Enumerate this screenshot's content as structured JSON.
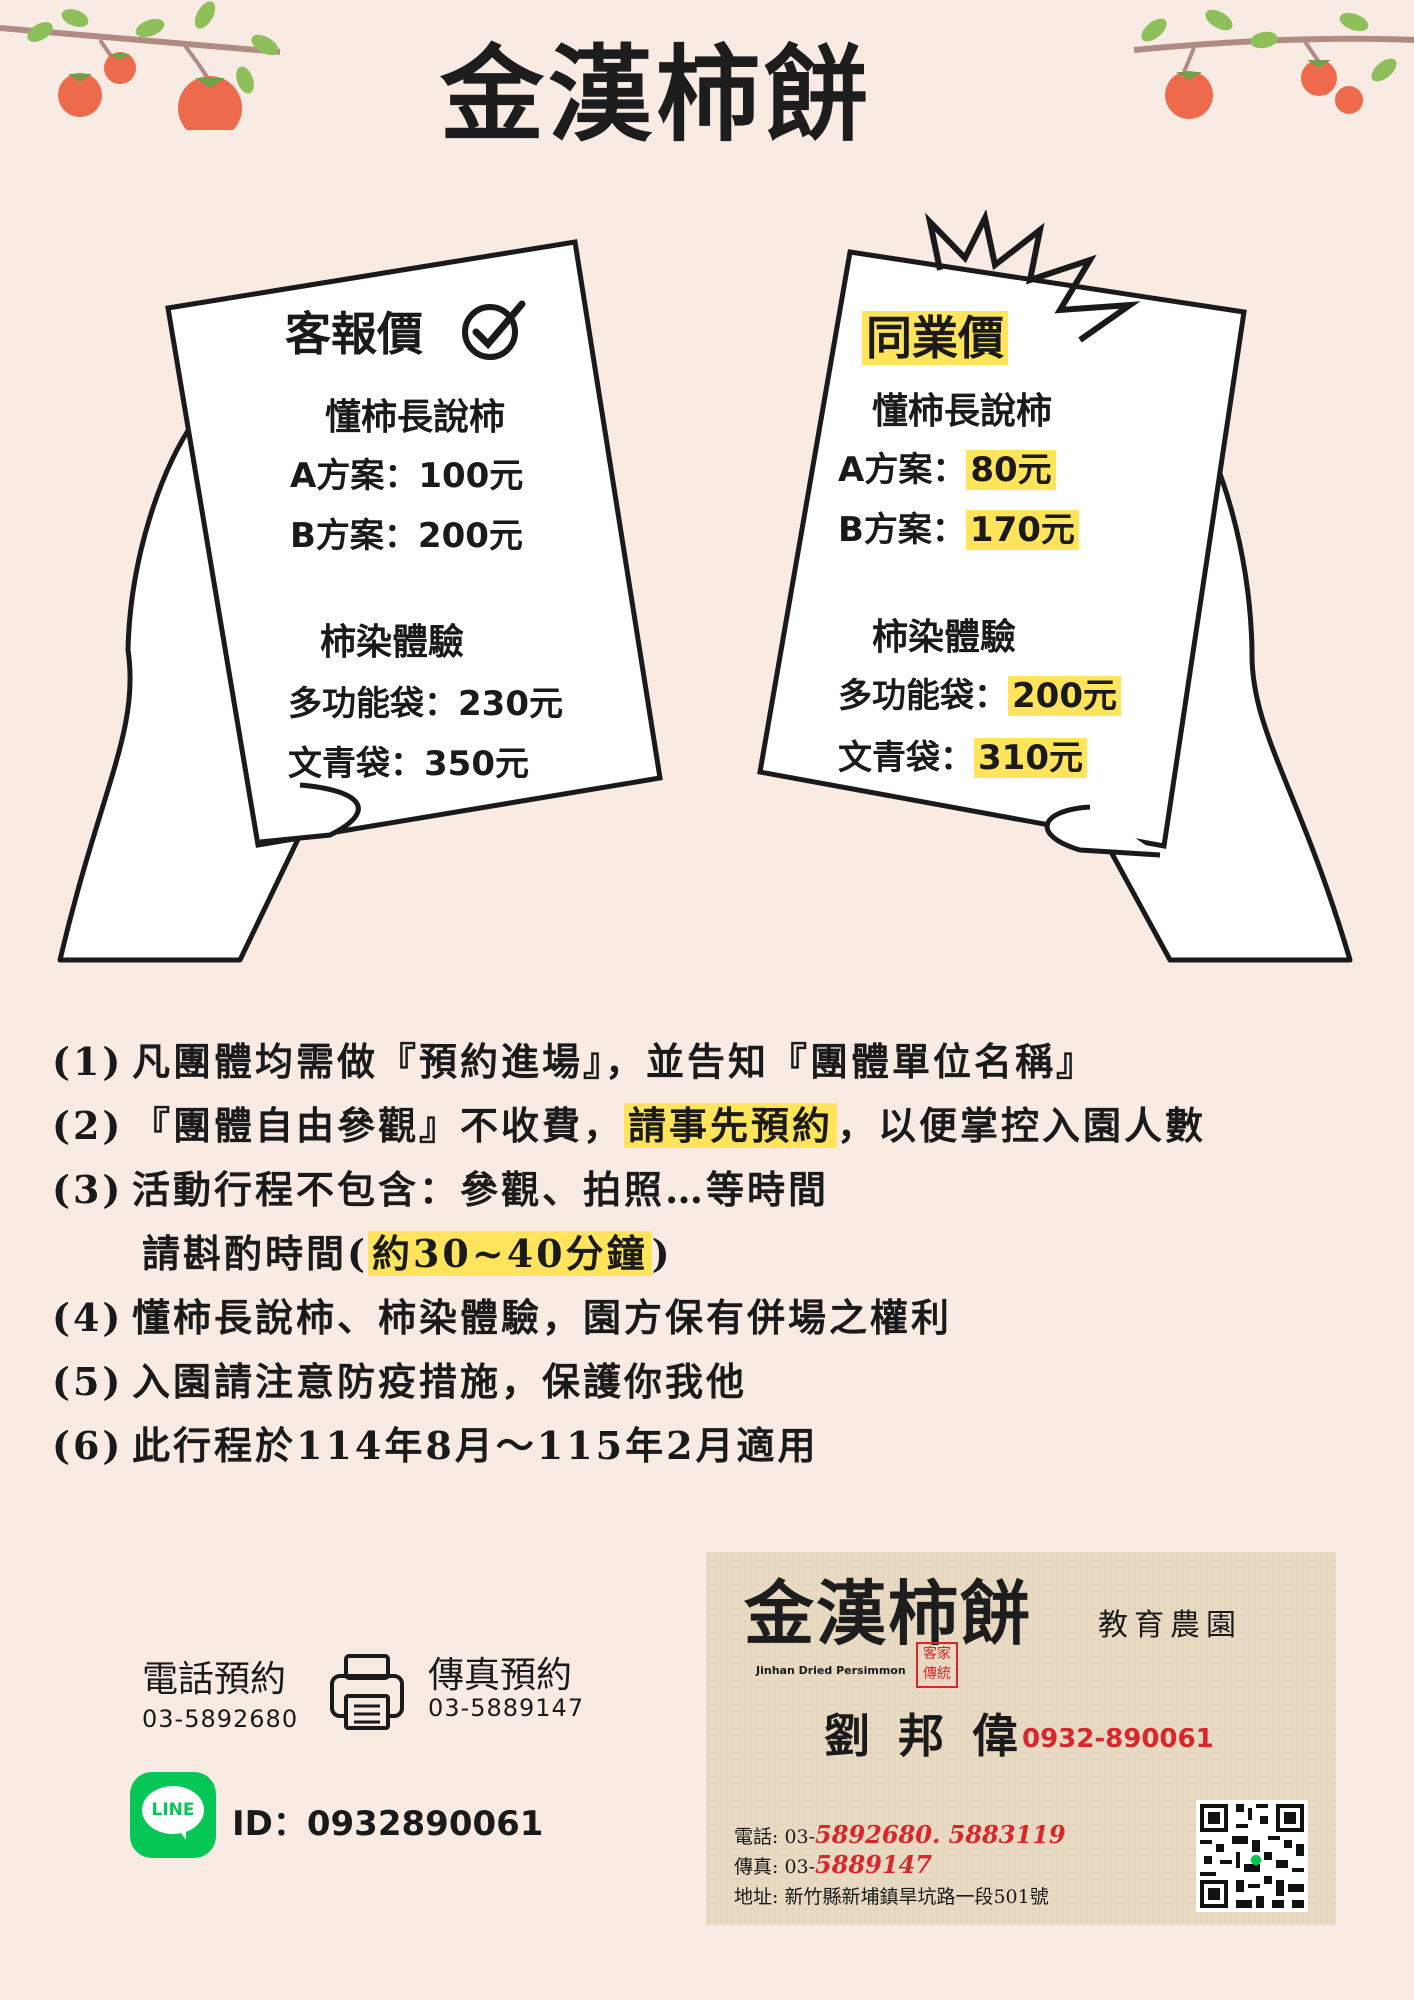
{
  "brand": {
    "title": "金漢柿餅"
  },
  "customer_sheet": {
    "heading": "客報價",
    "tour_title": "懂柿長說柿",
    "plan_a_label": "A方案：",
    "plan_a_price": "100元",
    "plan_b_label": "B方案：",
    "plan_b_price": "200元",
    "dye_title": "柿染體驗",
    "bag1_label": "多功能袋：",
    "bag1_price": "230元",
    "bag2_label": "文青袋：",
    "bag2_price": "350元"
  },
  "trade_sheet": {
    "heading": "同業價",
    "tour_title": "懂柿長說柿",
    "plan_a_label": "A方案：",
    "plan_a_price": "80元",
    "plan_b_label": "B方案：",
    "plan_b_price": "170元",
    "dye_title": "柿染體驗",
    "bag1_label": "多功能袋：",
    "bag1_price": "200元",
    "bag2_label": "文青袋：",
    "bag2_price": "310元"
  },
  "notes": [
    {
      "num": "(1)",
      "text": "凡團體均需做『預約進場』，並告知『團體單位名稱』"
    },
    {
      "num": "(2)",
      "pre": "『團體自由參觀』不收費，",
      "highlight": "請事先預約",
      "post": "，以便掌控入園人數"
    },
    {
      "num": "(3)",
      "text": "活動行程不包含：參觀、拍照…等時間"
    },
    {
      "pre": "請斟酌時間(",
      "highlight": "約30~40分鐘",
      "post": ")"
    },
    {
      "num": "(4)",
      "text": "懂柿長說柿、柿染體驗，園方保有併場之權利"
    },
    {
      "num": "(5)",
      "text": "入園請注意防疫措施，保護你我他"
    },
    {
      "num": "(6)",
      "text": "此行程於114年8月～115年2月適用"
    }
  ],
  "contact": {
    "phone_label": "電話預約",
    "phone_number": "03-5892680",
    "fax_label": "傳真預約",
    "fax_number": "03-5889147",
    "line_badge": "LINE",
    "line_id": "ID：0932890061"
  },
  "business_card": {
    "logo_text": "金漢柿餅",
    "subtitle": "教育農園",
    "english_name": "Jinhan Dried Persimmon",
    "seal_text": "客家傳統",
    "person_name": "劉 邦 偉",
    "mobile": "0932-890061",
    "phone_label": "電話: 03-",
    "phone_numbers": "5892680. 5883119",
    "fax_label": "傳真: 03-",
    "fax_number": "5889147",
    "address": "地址: 新竹縣新埔鎮旱坑路一段501號"
  },
  "colors": {
    "background": "#f8ebe4",
    "highlight": "#ffe45c",
    "persimmon": "#ee6a4c",
    "leaf": "#8fbf5a",
    "line_green": "#06c755",
    "card_red": "#d8262b"
  }
}
